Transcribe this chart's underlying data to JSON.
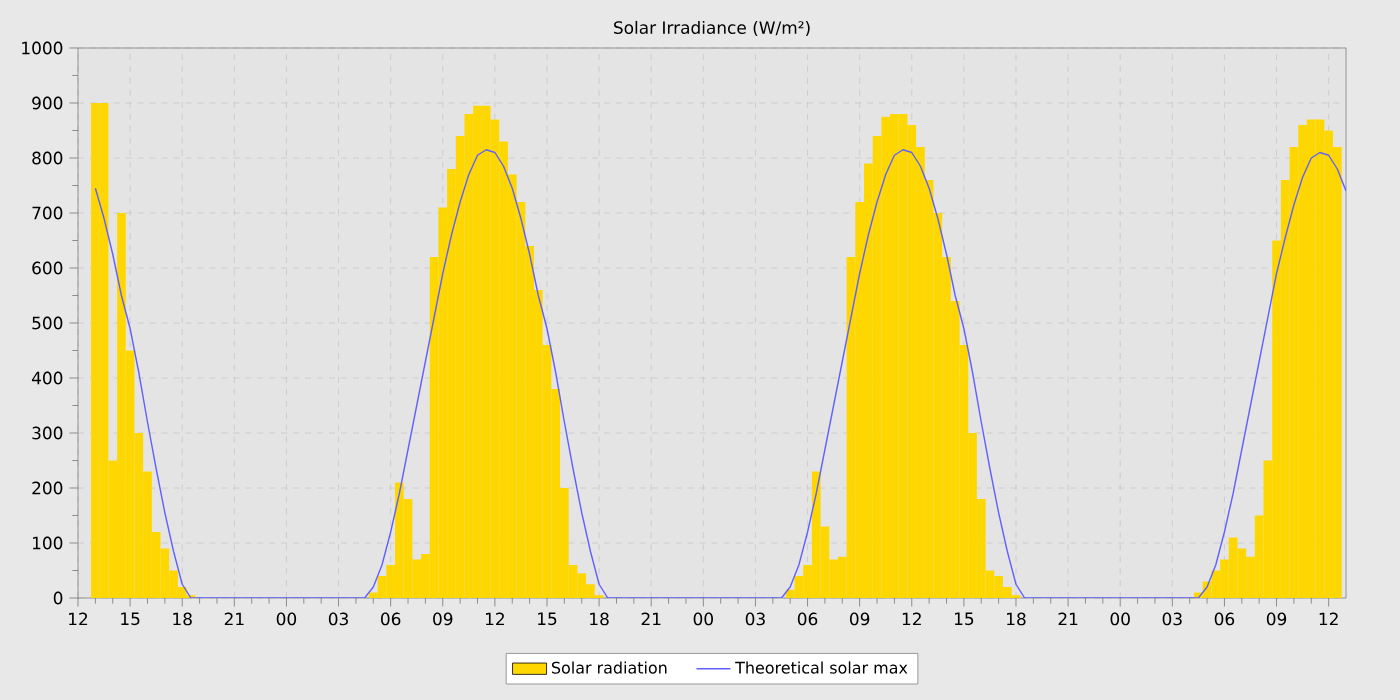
{
  "chart_data": {
    "type": "bar",
    "title": "Solar Irradiance (W/m²)",
    "xlim": [
      12,
      85
    ],
    "ylim": [
      0,
      1000
    ],
    "xticks": [
      {
        "value": 12,
        "label": "12"
      },
      {
        "value": 15,
        "label": "15"
      },
      {
        "value": 18,
        "label": "18"
      },
      {
        "value": 21,
        "label": "21"
      },
      {
        "value": 24,
        "label": "00"
      },
      {
        "value": 27,
        "label": "03"
      },
      {
        "value": 30,
        "label": "06"
      },
      {
        "value": 33,
        "label": "09"
      },
      {
        "value": 36,
        "label": "12"
      },
      {
        "value": 39,
        "label": "15"
      },
      {
        "value": 42,
        "label": "18"
      },
      {
        "value": 45,
        "label": "21"
      },
      {
        "value": 48,
        "label": "00"
      },
      {
        "value": 51,
        "label": "03"
      },
      {
        "value": 54,
        "label": "06"
      },
      {
        "value": 57,
        "label": "09"
      },
      {
        "value": 60,
        "label": "12"
      },
      {
        "value": 63,
        "label": "15"
      },
      {
        "value": 66,
        "label": "18"
      },
      {
        "value": 69,
        "label": "21"
      },
      {
        "value": 72,
        "label": "00"
      },
      {
        "value": 75,
        "label": "03"
      },
      {
        "value": 78,
        "label": "06"
      },
      {
        "value": 81,
        "label": "09"
      },
      {
        "value": 84,
        "label": "12"
      }
    ],
    "yticks": [
      0,
      100,
      200,
      300,
      400,
      500,
      600,
      700,
      800,
      900,
      1000
    ],
    "grid": true,
    "legend": "bottom",
    "series": [
      {
        "name": "Solar radiation",
        "color": "#ffd700",
        "x": [
          13,
          13.5,
          14,
          14.5,
          15,
          15.5,
          16,
          16.5,
          17,
          17.5,
          18,
          18.5,
          29,
          29.5,
          30,
          30.5,
          31,
          31.5,
          32,
          32.5,
          33,
          33.5,
          34,
          34.5,
          35,
          35.5,
          36,
          36.5,
          37,
          37.5,
          38,
          38.5,
          39,
          39.5,
          40,
          40.5,
          41,
          41.5,
          42,
          53,
          53.5,
          54,
          54.5,
          55,
          55.5,
          56,
          56.5,
          57,
          57.5,
          58,
          58.5,
          59,
          59.5,
          60,
          60.5,
          61,
          61.5,
          62,
          62.5,
          63,
          63.5,
          64,
          64.5,
          65,
          65.5,
          66,
          76.5,
          77,
          77.5,
          78,
          78.5,
          79,
          79.5,
          80,
          80.5,
          81,
          81.5,
          82,
          82.5,
          83,
          83.5,
          84,
          84.5
        ],
        "values": [
          900,
          900,
          250,
          700,
          450,
          300,
          230,
          120,
          90,
          50,
          20,
          5,
          10,
          40,
          60,
          210,
          180,
          70,
          80,
          620,
          710,
          780,
          840,
          880,
          895,
          895,
          870,
          830,
          770,
          720,
          640,
          560,
          460,
          380,
          200,
          60,
          45,
          25,
          5,
          15,
          40,
          60,
          230,
          130,
          70,
          75,
          620,
          720,
          790,
          840,
          875,
          880,
          880,
          860,
          820,
          760,
          700,
          620,
          540,
          460,
          300,
          180,
          50,
          40,
          20,
          5,
          10,
          30,
          50,
          70,
          110,
          90,
          75,
          150,
          250,
          650,
          760,
          820,
          860,
          870,
          870,
          850,
          820
        ]
      },
      {
        "name": "Theoretical solar max",
        "type": "line",
        "color": "#6060ff",
        "x": [
          13,
          13.5,
          14,
          14.5,
          15,
          15.5,
          16,
          16.5,
          17,
          17.5,
          18,
          18.5,
          28.5,
          29,
          29.5,
          30,
          30.5,
          31,
          31.5,
          32,
          32.5,
          33,
          33.5,
          34,
          34.5,
          35,
          35.5,
          36,
          36.5,
          37,
          37.5,
          38,
          38.5,
          39,
          39.5,
          40,
          40.5,
          41,
          41.5,
          42,
          42.5,
          52.5,
          53,
          53.5,
          54,
          54.5,
          55,
          55.5,
          56,
          56.5,
          57,
          57.5,
          58,
          58.5,
          59,
          59.5,
          60,
          60.5,
          61,
          61.5,
          62,
          62.5,
          63,
          63.5,
          64,
          64.5,
          65,
          65.5,
          66,
          66.5,
          76.5,
          77,
          77.5,
          78,
          78.5,
          79,
          79.5,
          80,
          80.5,
          81,
          81.5,
          82,
          82.5,
          83,
          83.5,
          84,
          84.5,
          85
        ],
        "values": [
          745,
          690,
          625,
          550,
          490,
          410,
          320,
          235,
          155,
          85,
          25,
          0,
          0,
          20,
          60,
          120,
          190,
          270,
          350,
          430,
          510,
          590,
          660,
          720,
          770,
          805,
          815,
          810,
          785,
          745,
          690,
          625,
          550,
          490,
          410,
          320,
          235,
          155,
          85,
          25,
          0,
          0,
          20,
          60,
          120,
          190,
          270,
          350,
          430,
          510,
          590,
          660,
          720,
          770,
          805,
          815,
          810,
          785,
          745,
          690,
          625,
          550,
          490,
          410,
          320,
          235,
          155,
          85,
          25,
          0,
          0,
          20,
          60,
          120,
          190,
          270,
          350,
          430,
          510,
          590,
          655,
          715,
          765,
          800,
          810,
          805,
          780,
          740
        ]
      }
    ]
  }
}
